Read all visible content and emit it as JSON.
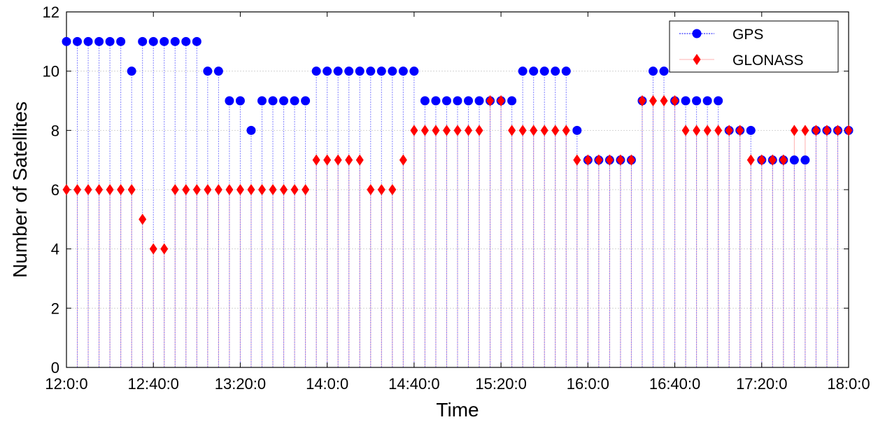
{
  "chart_data": {
    "type": "scatter",
    "style": "stem",
    "xlabel": "Time",
    "ylabel": "Number of Satellites",
    "ylim": [
      0,
      12
    ],
    "yticks": [
      0,
      2,
      4,
      6,
      8,
      10,
      12
    ],
    "xlim": [
      "12:0:0",
      "18:0:0"
    ],
    "xticks": [
      "12:0:0",
      "12:40:0",
      "13:20:0",
      "14:0:0",
      "14:40:0",
      "15:20:0",
      "16:0:0",
      "16:40:0",
      "17:20:0",
      "18:0:0"
    ],
    "sample_interval": "5 min",
    "grid": true,
    "legend_position": "top-right",
    "x": [
      "12:00",
      "12:05",
      "12:10",
      "12:15",
      "12:20",
      "12:25",
      "12:30",
      "12:35",
      "12:40",
      "12:45",
      "12:50",
      "12:55",
      "13:00",
      "13:05",
      "13:10",
      "13:15",
      "13:20",
      "13:25",
      "13:30",
      "13:35",
      "13:40",
      "13:45",
      "13:50",
      "13:55",
      "14:00",
      "14:05",
      "14:10",
      "14:15",
      "14:20",
      "14:25",
      "14:30",
      "14:35",
      "14:40",
      "14:45",
      "14:50",
      "14:55",
      "15:00",
      "15:05",
      "15:10",
      "15:15",
      "15:20",
      "15:25",
      "15:30",
      "15:35",
      "15:40",
      "15:45",
      "15:50",
      "15:55",
      "16:00",
      "16:05",
      "16:10",
      "16:15",
      "16:20",
      "16:25",
      "16:30",
      "16:35",
      "16:40",
      "16:45",
      "16:50",
      "16:55",
      "17:00",
      "17:05",
      "17:10",
      "17:15",
      "17:20",
      "17:25",
      "17:30",
      "17:35",
      "17:40",
      "17:45",
      "17:50",
      "17:55",
      "18:00"
    ],
    "series": [
      {
        "name": "GPS",
        "color": "#0000ff",
        "marker": "circle",
        "line": "dotted",
        "values": [
          11,
          11,
          11,
          11,
          11,
          11,
          10,
          11,
          11,
          11,
          11,
          11,
          11,
          10,
          10,
          9,
          9,
          8,
          9,
          9,
          9,
          9,
          9,
          10,
          10,
          10,
          10,
          10,
          10,
          10,
          10,
          10,
          10,
          9,
          9,
          9,
          9,
          9,
          9,
          9,
          9,
          9,
          10,
          10,
          10,
          10,
          10,
          8,
          7,
          7,
          7,
          7,
          7,
          9,
          10,
          10,
          9,
          9,
          9,
          9,
          9,
          8,
          8,
          8,
          7,
          7,
          7,
          7,
          7,
          8,
          8,
          8,
          8
        ]
      },
      {
        "name": "GLONASS",
        "color": "#ff0000",
        "marker": "diamond",
        "line": "solid",
        "values": [
          6,
          6,
          6,
          6,
          6,
          6,
          6,
          5,
          4,
          4,
          6,
          6,
          6,
          6,
          6,
          6,
          6,
          6,
          6,
          6,
          6,
          6,
          6,
          7,
          7,
          7,
          7,
          7,
          6,
          6,
          6,
          7,
          8,
          8,
          8,
          8,
          8,
          8,
          8,
          9,
          9,
          8,
          8,
          8,
          8,
          8,
          8,
          7,
          7,
          7,
          7,
          7,
          7,
          9,
          9,
          9,
          9,
          8,
          8,
          8,
          8,
          8,
          8,
          7,
          7,
          7,
          7,
          8,
          8,
          8,
          8,
          8,
          8
        ]
      }
    ]
  }
}
